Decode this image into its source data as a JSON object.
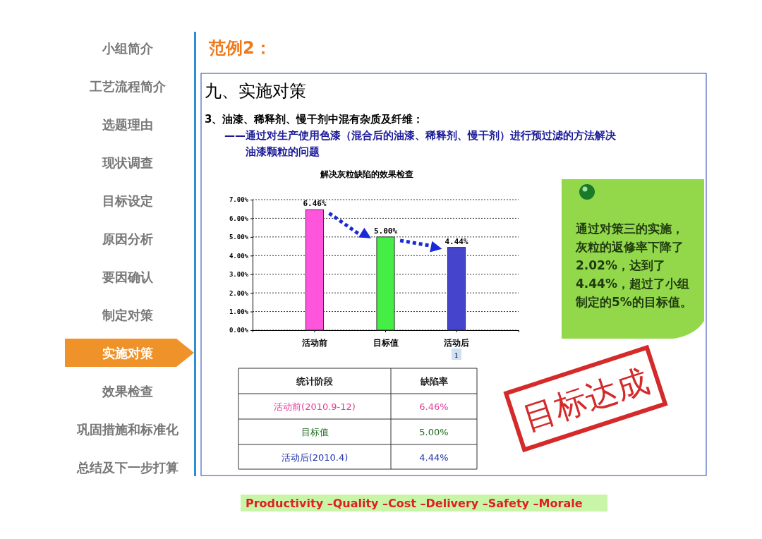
{
  "chart_data": {
    "type": "bar",
    "title": "解决灰粒缺陷的效果检查",
    "categories": [
      "活动前",
      "目标值",
      "活动后"
    ],
    "values": [
      6.46,
      5.0,
      4.44
    ],
    "colors": [
      "#ff55dd",
      "#44ee44",
      "#4444cc"
    ],
    "value_labels": [
      "6.46%",
      "5.00%",
      "4.44%"
    ],
    "ylim": [
      0,
      7
    ],
    "yticks": [
      {
        "value": 0,
        "label": "0.00%"
      },
      {
        "value": 1,
        "label": "1.00%"
      },
      {
        "value": 2,
        "label": "2.00%"
      },
      {
        "value": 3,
        "label": "3.00%"
      },
      {
        "value": 4,
        "label": "4.00%"
      },
      {
        "value": 5,
        "label": "5.00%"
      },
      {
        "value": 6,
        "label": "6.00%"
      },
      {
        "value": 7,
        "label": "7.00%"
      }
    ],
    "grid": "y",
    "annotations": [
      "小组简介",
      "工艺流程简介",
      "选题理由",
      "现状调查",
      "目标设定",
      "原因分析",
      "要因确认",
      "制定对策",
      "实施对策",
      "效果检查",
      "巩固措施和标准化",
      "总结及下一步打算",
      "范例2：",
      "九、实施对策",
      "3、油漆、稀释剂、慢干剂中混有杂质及纤维：",
      "——通过对生产使用色漆（混合后的油漆、稀释剂、慢干剂）进行预过滤的方法解决",
      "油漆颗粒的问题",
      "通过对策三的实施，灰粒的返修率下降了2.02%，达到了4.44%，超过了小组制定的5%的目标值。",
      "目标达成",
      "统计阶段",
      "缺陷率",
      "活动前(2010.9-12)",
      "目标值",
      "活动后(2010.4)",
      "1",
      "Productivity –Quality –Cost –Delivery –Safety –Morale"
    ]
  }
}
